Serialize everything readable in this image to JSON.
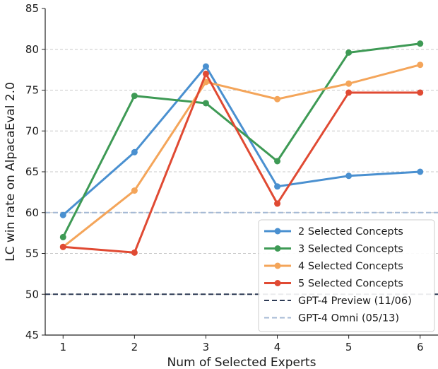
{
  "chart_data": {
    "type": "line",
    "xlabel": "Num of Selected Experts",
    "ylabel": "LC win rate on AlpacaEval 2.0",
    "x": [
      1,
      2,
      3,
      4,
      5,
      6
    ],
    "xlim": [
      0.75,
      6.25
    ],
    "ylim": [
      45,
      85
    ],
    "yticks": [
      45,
      50,
      55,
      60,
      65,
      70,
      75,
      80,
      85
    ],
    "grid": "y-dashed",
    "legend_position": "lower-right",
    "series": [
      {
        "name": "2 Selected Concepts",
        "color": "#4a90d0",
        "values": [
          59.7,
          67.4,
          77.9,
          63.2,
          64.5,
          65.0
        ]
      },
      {
        "name": "3 Selected Concepts",
        "color": "#3e9a55",
        "values": [
          57.0,
          74.3,
          73.4,
          66.3,
          79.6,
          80.7
        ]
      },
      {
        "name": "4 Selected Concepts",
        "color": "#f4a55a",
        "values": [
          55.8,
          62.7,
          76.0,
          73.9,
          75.8,
          78.1
        ]
      },
      {
        "name": "5 Selected Concepts",
        "color": "#e04a33",
        "values": [
          55.8,
          55.1,
          77.0,
          61.1,
          74.7,
          74.7
        ]
      }
    ],
    "reference_lines": [
      {
        "name": "GPT-4 Preview (11/06)",
        "y": 50.0,
        "color": "#2e3b55"
      },
      {
        "name": "GPT-4 Omni (05/13)",
        "y": 60.0,
        "color": "#a4b8d4"
      }
    ]
  }
}
